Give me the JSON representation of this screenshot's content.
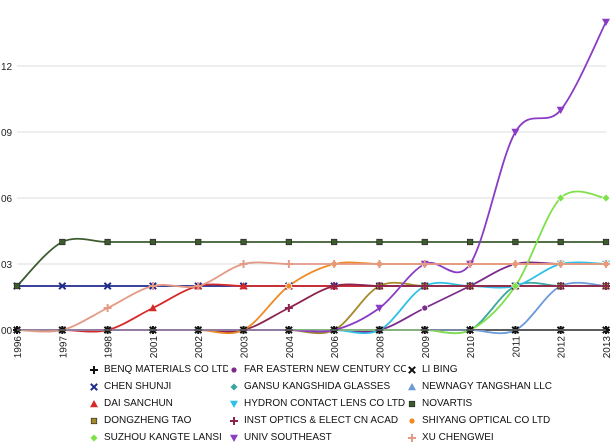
{
  "chart_data": {
    "type": "line",
    "title": "",
    "xlabel": "",
    "ylabel": "",
    "x": [
      "1996",
      "1997",
      "1998",
      "2001",
      "2002",
      "2003",
      "2004",
      "2006",
      "2008",
      "2009",
      "2010",
      "2011",
      "2012",
      "2013"
    ],
    "y_ticks": [
      "00",
      "03",
      "06",
      "09",
      "12"
    ],
    "ylim": [
      0,
      0.15
    ],
    "grid": "horizontal",
    "legend_position": "bottom",
    "series": [
      {
        "name": "BENQ MATERIALS CO LTD",
        "marker": "plus",
        "color": "#111111",
        "values": [
          0,
          0,
          0,
          0,
          0,
          0,
          0,
          0,
          0,
          0,
          0,
          0,
          0,
          0
        ]
      },
      {
        "name": "FAR EASTERN NEW CENTURY CO",
        "marker": "circle",
        "color": "#7b2c8c",
        "values": [
          0,
          0,
          0,
          0,
          0,
          0,
          0,
          0,
          0,
          0.01,
          0.02,
          0.03,
          0.03,
          0.03
        ]
      },
      {
        "name": "LI BING",
        "marker": "x",
        "color": "#111111",
        "values": [
          0,
          0,
          0,
          0,
          0,
          0,
          0,
          0,
          0,
          0,
          0,
          0,
          0,
          0
        ]
      },
      {
        "name": "CHEN SHUNJI",
        "marker": "x",
        "color": "#1f2a8c",
        "values": [
          0.02,
          0.02,
          0.02,
          0.02,
          0.02,
          0.02,
          0.02,
          0.02,
          0.02,
          0.02,
          0.02,
          0.02,
          0.02,
          0.02
        ]
      },
      {
        "name": "GANSU KANGSHIDA GLASSES",
        "marker": "diamond",
        "color": "#3aa6a0",
        "values": [
          0,
          0,
          0,
          0,
          0,
          0,
          0,
          0,
          0,
          0,
          0,
          0.02,
          0.02,
          0.02
        ]
      },
      {
        "name": "NEWNAGY TANGSHAN LLC",
        "marker": "triangle",
        "color": "#6a9bd8",
        "values": [
          0,
          0,
          0,
          0,
          0,
          0,
          0,
          0,
          0,
          0,
          0,
          0,
          0.02,
          0.02
        ]
      },
      {
        "name": "DAI SANCHUN",
        "marker": "triangle",
        "color": "#d62a2a",
        "values": [
          0,
          0,
          0,
          0.01,
          0.02,
          0.02,
          0.02,
          0.02,
          0.02,
          0.02,
          0.02,
          0.02,
          0.02,
          0.02
        ]
      },
      {
        "name": "HYDRON CONTACT LENS CO LTD",
        "marker": "triangle-down",
        "color": "#2fc0e6",
        "values": [
          0,
          0,
          0,
          0,
          0,
          0,
          0,
          0,
          0,
          0.02,
          0.02,
          0.02,
          0.03,
          0.03
        ]
      },
      {
        "name": "NOVARTIS",
        "marker": "square",
        "color": "#3d5c2e",
        "values": [
          0.02,
          0.04,
          0.04,
          0.04,
          0.04,
          0.04,
          0.04,
          0.04,
          0.04,
          0.04,
          0.04,
          0.04,
          0.04,
          0.04
        ]
      },
      {
        "name": "DONGZHENG TAO",
        "marker": "square",
        "color": "#a58a2a",
        "values": [
          0,
          0,
          0,
          0,
          0,
          0,
          0,
          0,
          0.02,
          0.02,
          0.02,
          0.02,
          0.02,
          0.02
        ]
      },
      {
        "name": "INST OPTICS & ELECT CN ACAD",
        "marker": "plus",
        "color": "#8c2450",
        "values": [
          0,
          0,
          0,
          0,
          0,
          0,
          0.01,
          0.02,
          0.02,
          0.02,
          0.02,
          0.02,
          0.02,
          0.02
        ]
      },
      {
        "name": "SHIYANG OPTICAL CO LTD",
        "marker": "circle",
        "color": "#f08a24",
        "values": [
          0,
          0,
          0,
          0,
          0,
          0,
          0.02,
          0.03,
          0.03,
          0.03,
          0.03,
          0.03,
          0.03,
          0.03
        ]
      },
      {
        "name": "SUZHOU KANGTE LANSI",
        "marker": "diamond",
        "color": "#7fe04a",
        "values": [
          0,
          0,
          0,
          0,
          0,
          0,
          0,
          0,
          0,
          0,
          0,
          0.02,
          0.06,
          0.06
        ]
      },
      {
        "name": "UNIV SOUTHEAST",
        "marker": "triangle-down",
        "color": "#8a3cc4",
        "values": [
          0,
          0,
          0,
          0,
          0,
          0,
          0,
          0,
          0.01,
          0.03,
          0.03,
          0.09,
          0.1,
          0.14
        ]
      },
      {
        "name": "XU CHENGWEI",
        "marker": "plus",
        "color": "#e39a86",
        "values": [
          0,
          0,
          0.01,
          0.02,
          0.02,
          0.03,
          0.03,
          0.03,
          0.03,
          0.03,
          0.03,
          0.03,
          0.03,
          0.03
        ]
      }
    ]
  }
}
